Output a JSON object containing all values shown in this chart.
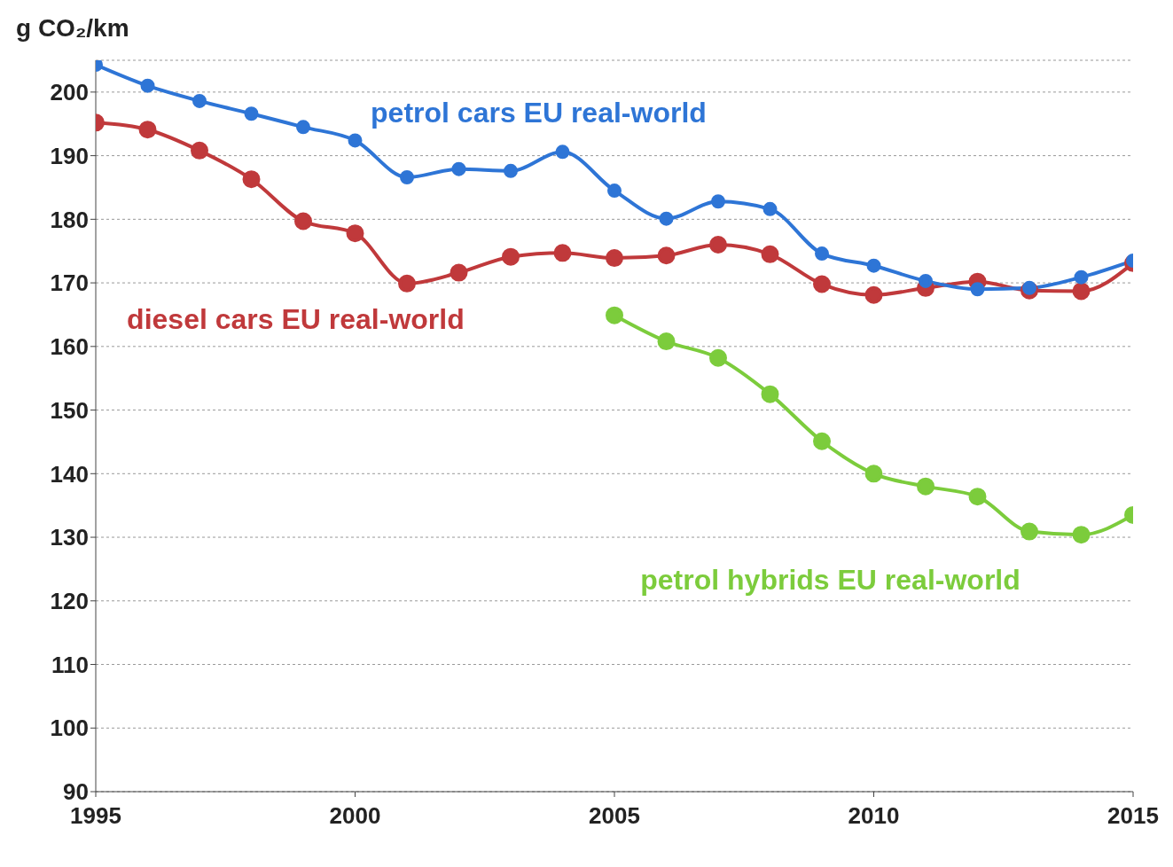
{
  "chart_data": {
    "type": "line",
    "ylabel": "g CO₂/km",
    "x": [
      1995,
      1996,
      1997,
      1998,
      1999,
      2000,
      2001,
      2002,
      2003,
      2004,
      2005,
      2006,
      2007,
      2008,
      2009,
      2010,
      2011,
      2012,
      2013,
      2014,
      2015
    ],
    "series": [
      {
        "name": "petrol cars EU real-world",
        "color": "#2e75d6",
        "values": [
          204.3,
          201,
          198.6,
          196.6,
          194.5,
          192.4,
          186.6,
          187.9,
          187.6,
          190.6,
          184.5,
          180.1,
          182.8,
          181.6,
          174.6,
          172.7,
          170.3,
          169,
          169.2,
          170.9,
          173.5
        ]
      },
      {
        "name": "diesel cars EU real-world",
        "color": "#c0393b",
        "values": [
          195.2,
          194.1,
          190.8,
          186.3,
          179.7,
          177.8,
          169.9,
          171.6,
          174.1,
          174.7,
          173.9,
          174.3,
          176,
          174.5,
          169.8,
          168.1,
          169.2,
          170.2,
          168.8,
          168.7,
          173.1
        ]
      },
      {
        "name": "petrol hybrids EU real-world",
        "color": "#7ccc3c",
        "values": [
          null,
          null,
          null,
          null,
          null,
          null,
          null,
          null,
          null,
          null,
          164.9,
          160.8,
          158.2,
          152.5,
          145.1,
          140,
          138,
          136.4,
          130.9,
          130.4,
          133.5
        ]
      }
    ],
    "xlim": [
      1995,
      2015
    ],
    "xticks": [
      1995,
      2000,
      2005,
      2010,
      2015
    ],
    "ylim": [
      90,
      205
    ],
    "yticks": [
      90,
      100,
      110,
      120,
      130,
      140,
      150,
      160,
      170,
      180,
      190,
      200
    ],
    "grid": "y",
    "legend": false,
    "marker": "circle",
    "line_style": "solid"
  }
}
